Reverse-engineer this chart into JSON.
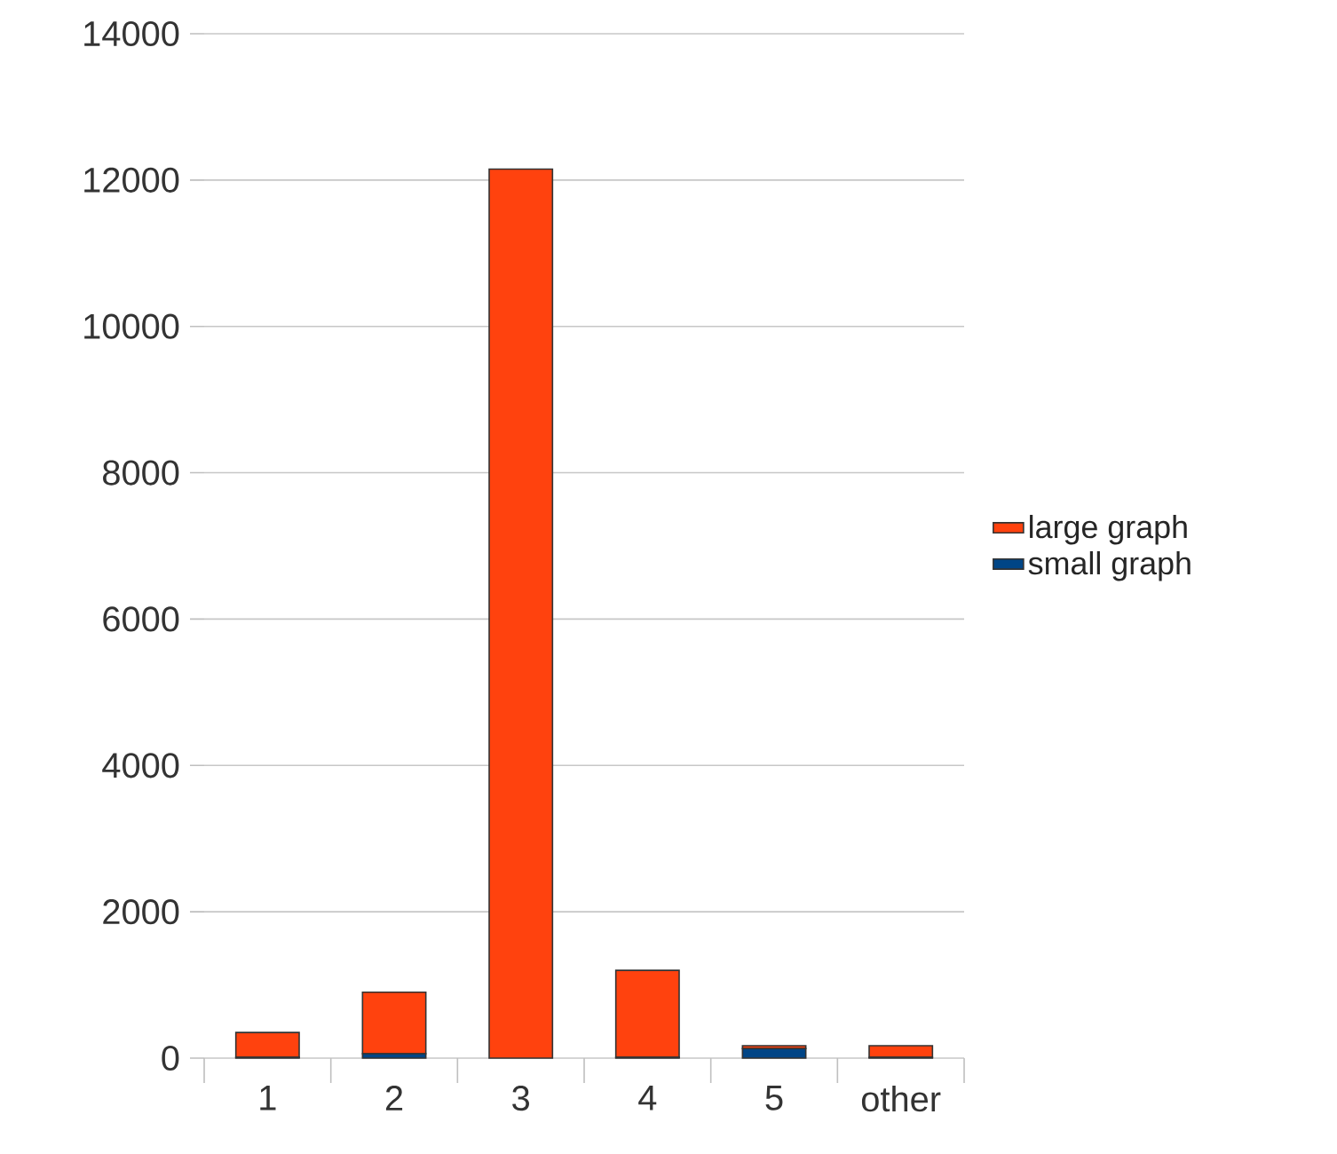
{
  "chart_data": {
    "type": "bar",
    "stacked": true,
    "categories": [
      "1",
      "2",
      "3",
      "4",
      "5",
      "other"
    ],
    "series": [
      {
        "name": "small graph",
        "color": "#004586",
        "values": [
          10,
          60,
          0,
          10,
          130,
          10
        ]
      },
      {
        "name": "large graph",
        "color": "#ff420e",
        "values": [
          340,
          840,
          12150,
          1190,
          40,
          160
        ]
      }
    ],
    "ylim": [
      0,
      14000
    ],
    "yticks": [
      0,
      2000,
      4000,
      6000,
      8000,
      10000,
      12000,
      14000
    ],
    "grid": "y",
    "legend": "right"
  }
}
